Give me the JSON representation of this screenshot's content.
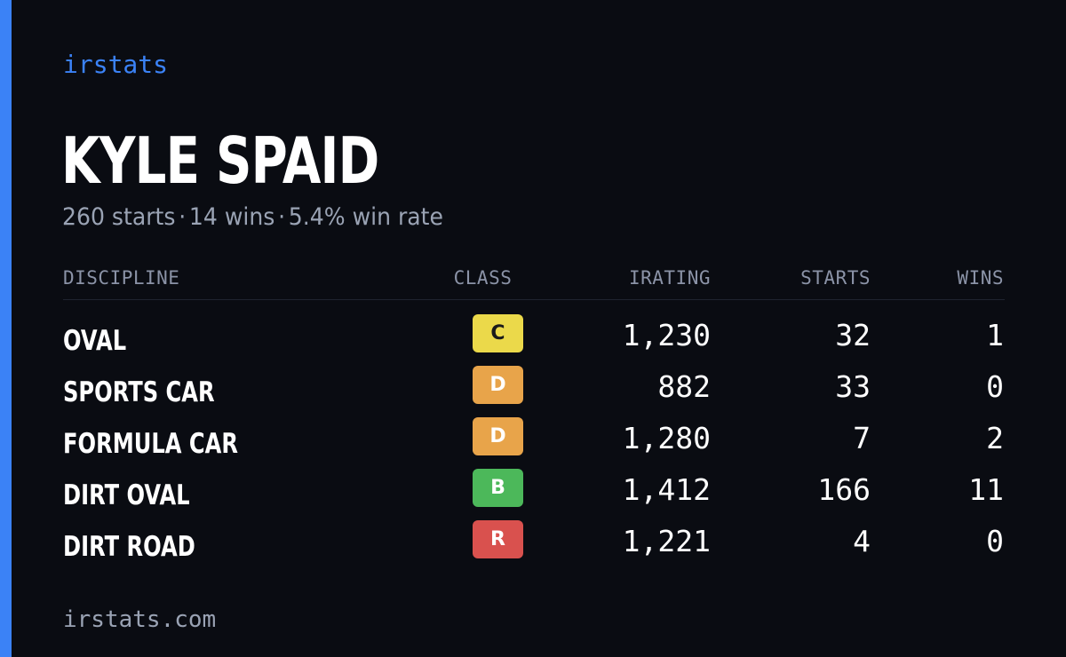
{
  "brand": "irstats",
  "player": {
    "name": "KYLE SPAID",
    "starts_text": "260 starts",
    "wins_text": "14 wins",
    "win_rate_text": "5.4% win rate",
    "separator": "·"
  },
  "table": {
    "headers": {
      "discipline": "DISCIPLINE",
      "class": "CLASS",
      "irating": "IRATING",
      "starts": "STARTS",
      "wins": "WINS"
    },
    "rows": [
      {
        "discipline": "OVAL",
        "class": "C",
        "irating": "1,230",
        "starts": "32",
        "wins": "1"
      },
      {
        "discipline": "SPORTS CAR",
        "class": "D",
        "irating": "882",
        "starts": "33",
        "wins": "0"
      },
      {
        "discipline": "FORMULA CAR",
        "class": "D",
        "irating": "1,280",
        "starts": "7",
        "wins": "2"
      },
      {
        "discipline": "DIRT OVAL",
        "class": "B",
        "irating": "1,412",
        "starts": "166",
        "wins": "11"
      },
      {
        "discipline": "DIRT ROAD",
        "class": "R",
        "irating": "1,221",
        "starts": "4",
        "wins": "0"
      }
    ]
  },
  "class_colors": {
    "C": {
      "bg": "#ebd94a",
      "fg": "#1a1a1a"
    },
    "D": {
      "bg": "#e8a44a",
      "fg": "#ffffff"
    },
    "B": {
      "bg": "#4cb85a",
      "fg": "#ffffff"
    },
    "R": {
      "bg": "#d9514e",
      "fg": "#ffffff"
    }
  },
  "colors": {
    "accent": "#3b82f6",
    "background": "#0a0c12"
  },
  "footer": "irstats.com"
}
